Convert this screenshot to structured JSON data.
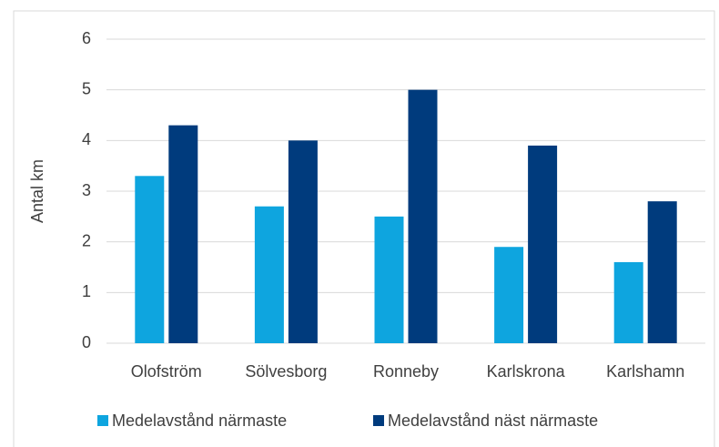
{
  "chart_data": {
    "type": "bar",
    "y_label": "Antal km",
    "categories": [
      "Olofström",
      "Sölvesborg",
      "Ronneby",
      "Karlskrona",
      "Karlshamn"
    ],
    "series": [
      {
        "name": "Medelavstånd närmaste",
        "color": "#0ea5df",
        "values": [
          3.3,
          2.7,
          2.5,
          1.9,
          1.6
        ]
      },
      {
        "name": "Medelavstånd näst närmaste",
        "color": "#003b7d",
        "values": [
          4.3,
          4.0,
          5.0,
          3.9,
          2.8
        ]
      }
    ],
    "ylim": [
      0,
      6
    ],
    "yticks": [
      0,
      1,
      2,
      3,
      4,
      5,
      6
    ],
    "grid": true,
    "legend": "bottom"
  }
}
